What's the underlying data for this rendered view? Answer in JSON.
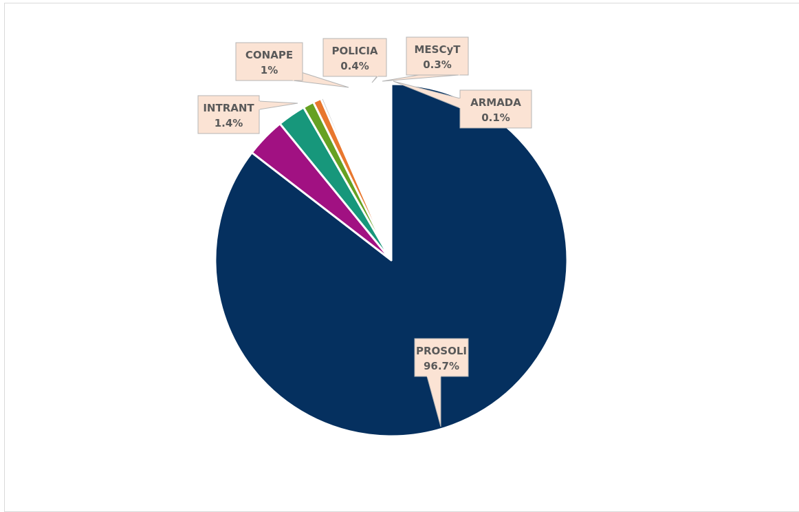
{
  "chart_data": {
    "type": "pie",
    "slices": [
      {
        "label": "PROSOLI",
        "value": 96.7,
        "value_label": "96.7%",
        "color": "#05305f"
      },
      {
        "label": "INTRANT",
        "value": 1.4,
        "value_label": "1.4%",
        "color": "#a11182"
      },
      {
        "label": "CONAPE",
        "value": 1.0,
        "value_label": "1%",
        "color": "#17977b"
      },
      {
        "label": "POLICIA",
        "value": 0.4,
        "value_label": "0.4%",
        "color": "#66a122"
      },
      {
        "label": "MESCyT",
        "value": 0.3,
        "value_label": "0.3%",
        "color": "#e8772e"
      },
      {
        "label": "ARMADA",
        "value": 0.1,
        "value_label": "0.1%",
        "color": "#c9c9c9"
      }
    ],
    "label_style": {
      "fill": "#fbe3d4",
      "border": "#b5b5b5",
      "text_color": "#595959"
    }
  }
}
